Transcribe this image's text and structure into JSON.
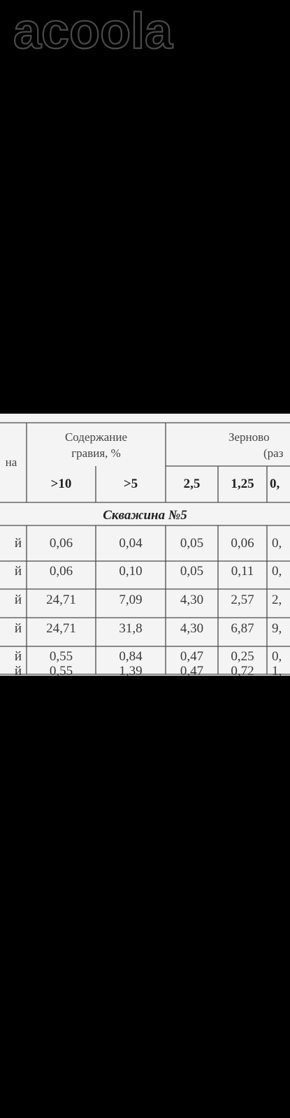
{
  "watermark": {
    "text": "acoola"
  },
  "table": {
    "header": {
      "col0_fragment": "на",
      "group1_line1": "Содержание",
      "group1_line2": "гравия, %",
      "group2_line1": "Зерново",
      "group2_line2": "(раз"
    },
    "subheaders": [
      ">10",
      ">5",
      "2,5",
      "1,25",
      "0,"
    ],
    "section_title": "Скважина №5",
    "rows": [
      {
        "label": "й",
        "cells": [
          "0,06",
          "0,04",
          "0,05",
          "0,06",
          "0,"
        ]
      },
      {
        "label": "й",
        "cells": [
          "0,06",
          "0,10",
          "0,05",
          "0,11",
          "0,"
        ]
      },
      {
        "label": "й",
        "cells": [
          "24,71",
          "7,09",
          "4,30",
          "2,57",
          "2,"
        ]
      },
      {
        "label": "й",
        "cells": [
          "24,71",
          "31,8",
          "4,30",
          "6,87",
          "9,"
        ]
      },
      {
        "label": "й",
        "cells": [
          "0,55",
          "0,84",
          "0,47",
          "0,25",
          "0,"
        ]
      },
      {
        "label": "й",
        "cells": [
          "0,55",
          "1,39",
          "0,47",
          "0,72",
          "1,"
        ]
      }
    ]
  }
}
